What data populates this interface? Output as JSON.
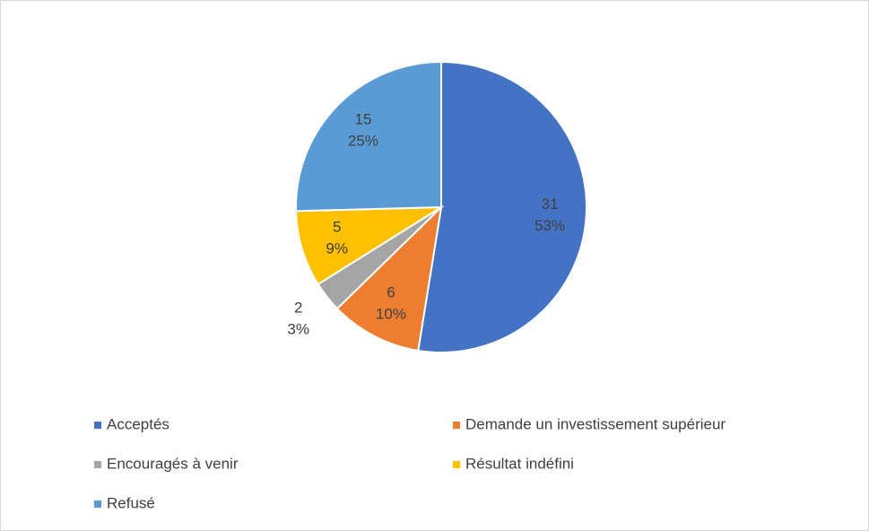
{
  "chart_data": {
    "type": "pie",
    "categories": [
      "Acceptés",
      "Demande un investissement supérieur",
      "Encouragés à venir",
      "Résultat indéfini",
      "Refusé"
    ],
    "values": [
      31,
      6,
      2,
      5,
      15
    ],
    "percent_labels": [
      "53%",
      "10%",
      "3%",
      "9%",
      "25%"
    ],
    "colors": [
      "#4472c4",
      "#ed7d31",
      "#a5a5a5",
      "#ffc000",
      "#5b9bd5"
    ],
    "legend": "bottom"
  }
}
